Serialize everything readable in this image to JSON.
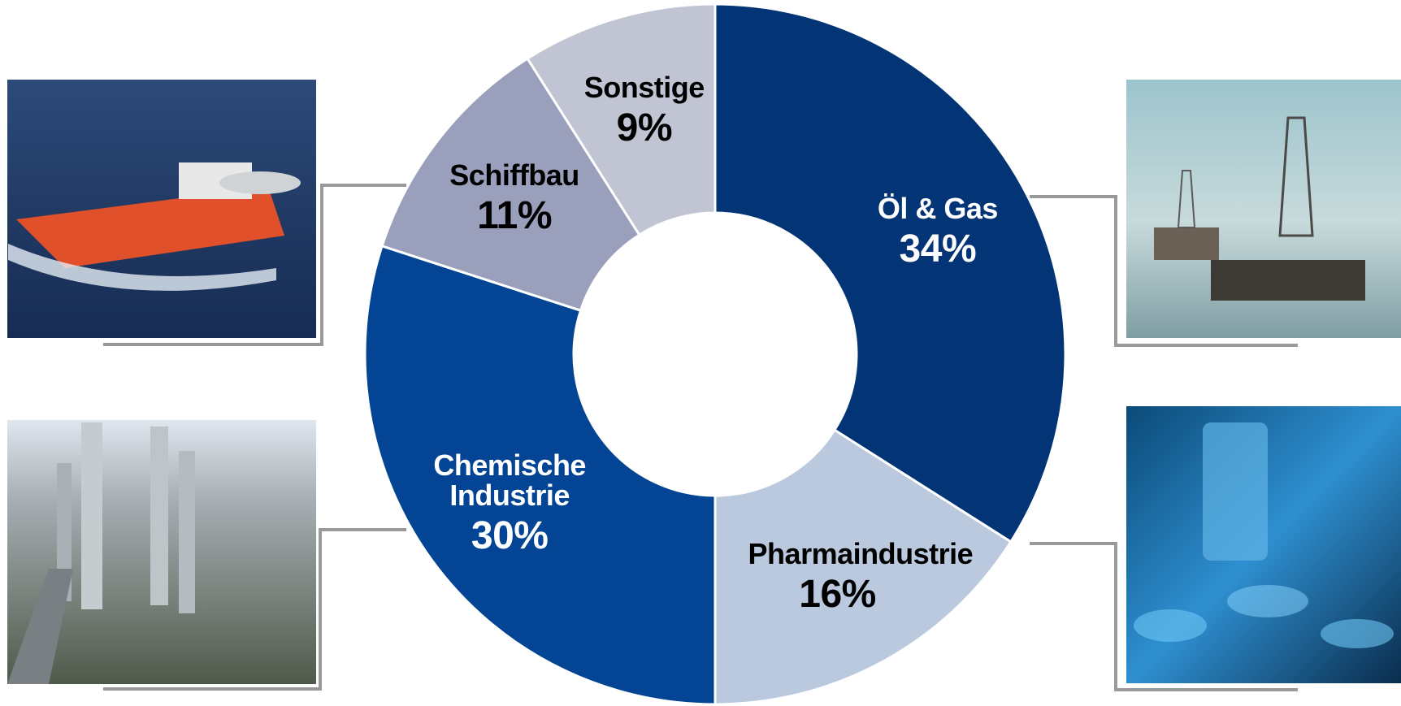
{
  "chart_data": {
    "type": "donut",
    "categories": [
      "Öl & Gas",
      "Pharmaindustrie",
      "Chemische Industrie",
      "Schiffbau",
      "Sonstige"
    ],
    "values": [
      34,
      16,
      30,
      11,
      9
    ],
    "value_labels": [
      "34%",
      "16%",
      "30%",
      "11%",
      "9%"
    ],
    "colors": [
      "#023476",
      "#bac9de",
      "#034594",
      "#9aa0bc",
      "#c1c5d3"
    ]
  }
}
